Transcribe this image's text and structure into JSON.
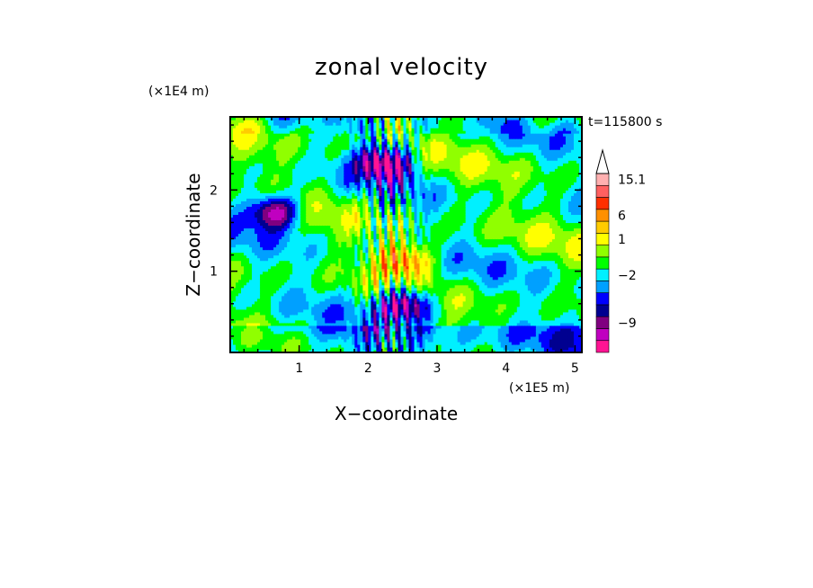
{
  "chart_data": {
    "type": "heatmap",
    "title": "zonal velocity",
    "xlabel": "X−coordinate",
    "ylabel": "Z−coordinate",
    "x_scale": "(×1E5 m)",
    "y_scale": "(×1E4 m)",
    "time_label": "t=115800 s",
    "xlim": [
      0,
      5.1
    ],
    "ylim": [
      0,
      2.9
    ],
    "x_ticks": [
      "1",
      "2",
      "3",
      "4",
      "5"
    ],
    "y_ticks": [
      "1",
      "2"
    ],
    "colorbar_labels": [
      "15.1",
      "6",
      "1",
      "−2",
      "−9"
    ],
    "colorbar_colors": [
      "#ff1493",
      "#c000c0",
      "#800080",
      "#000090",
      "#0000ff",
      "#00a0ff",
      "#00f0ff",
      "#00ff00",
      "#90ff00",
      "#ffff00",
      "#ffcc00",
      "#ff9000",
      "#ff3000",
      "#ff6060",
      "#ffb0b0"
    ],
    "features": [
      {
        "label": "negative core upper",
        "x": 2.25,
        "z": 2.35,
        "value": -9
      },
      {
        "label": "negative core lower",
        "x": 2.55,
        "z": 0.6,
        "value": -9
      },
      {
        "label": "positive core",
        "x": 2.55,
        "z": 1.15,
        "value": 6
      },
      {
        "label": "left negative band",
        "x": 0.65,
        "z": 1.75,
        "value": -9
      }
    ]
  }
}
